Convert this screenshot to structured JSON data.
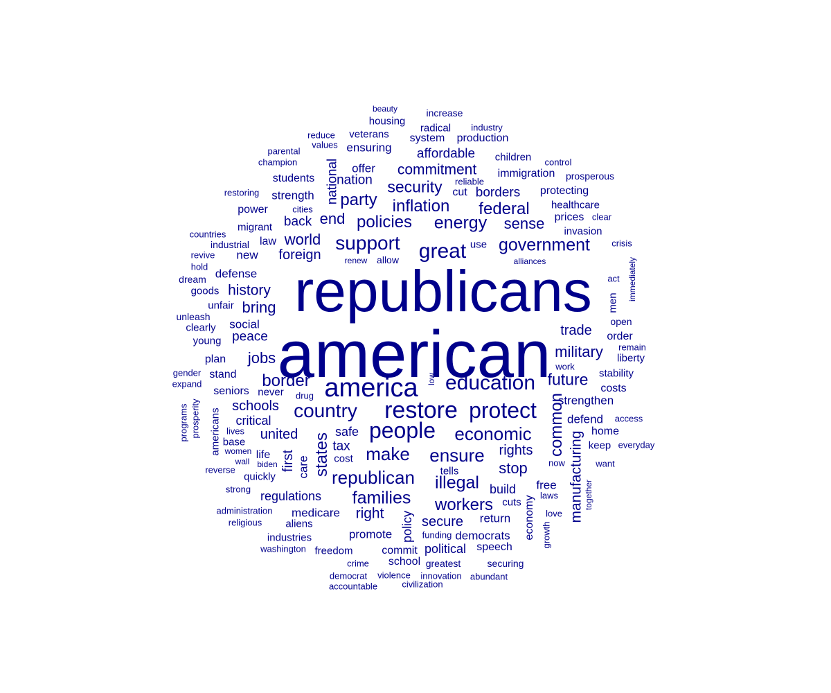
{
  "colors": {
    "word": "#00008B",
    "background": "#ffffff"
  },
  "words": [
    "american",
    "republicans",
    "america",
    "restore",
    "protect",
    "education",
    "people",
    "country",
    "great",
    "support",
    "government",
    "energy",
    "inflation",
    "security",
    "policies",
    "economic",
    "ensure",
    "make",
    "families",
    "republican",
    "illegal",
    "states",
    "border",
    "workers",
    "future",
    "common",
    "military",
    "party",
    "federal",
    "sense",
    "commitment",
    "affordable",
    "world",
    "foreign",
    "end",
    "back",
    "history",
    "bring",
    "jobs",
    "schools",
    "united",
    "critical",
    "tax",
    "safe",
    "first",
    "care",
    "right",
    "secure",
    "promote",
    "policy",
    "economy",
    "manufacturing",
    "trade",
    "rights",
    "stop",
    "build",
    "free",
    "return",
    "cuts",
    "democrats",
    "political",
    "speech",
    "commit",
    "school",
    "freedom",
    "medicare",
    "regulations",
    "aliens",
    "industries",
    "quickly",
    "life",
    "base",
    "seniors",
    "stand",
    "plan",
    "young",
    "social",
    "peace",
    "defense",
    "goods",
    "unfair",
    "clearly",
    "unleash",
    "dream",
    "hold",
    "revive",
    "countries",
    "industrial",
    "new",
    "law",
    "migrant",
    "power",
    "strength",
    "students",
    "nation",
    "national",
    "offer",
    "ensuring",
    "veterans",
    "housing",
    "system",
    "production",
    "radical",
    "children",
    "immigration",
    "borders",
    "cut",
    "reliable",
    "protecting",
    "healthcare",
    "prices",
    "invasion",
    "crisis",
    "clear",
    "alliances",
    "act",
    "immediately",
    "men",
    "open",
    "order",
    "remain",
    "liberty",
    "stability",
    "costs",
    "strengthen",
    "defend",
    "access",
    "home",
    "keep",
    "everyday",
    "want",
    "now",
    "together",
    "laws",
    "love",
    "growth",
    "work",
    "drug",
    "never",
    "low",
    "cost",
    "tells",
    "use",
    "allow",
    "renew",
    "cities",
    "parental",
    "champion",
    "values",
    "reduce",
    "beauty",
    "increase",
    "industry",
    "control",
    "prosperous",
    "restoring",
    "gender",
    "expand",
    "programs",
    "prosperity",
    "americans",
    "lives",
    "women",
    "wall",
    "biden",
    "reverse",
    "strong",
    "administration",
    "religious",
    "washington",
    "crime",
    "greatest",
    "securing",
    "democrat",
    "violence",
    "innovation",
    "abundant",
    "accountable",
    "civilization",
    "funding"
  ]
}
